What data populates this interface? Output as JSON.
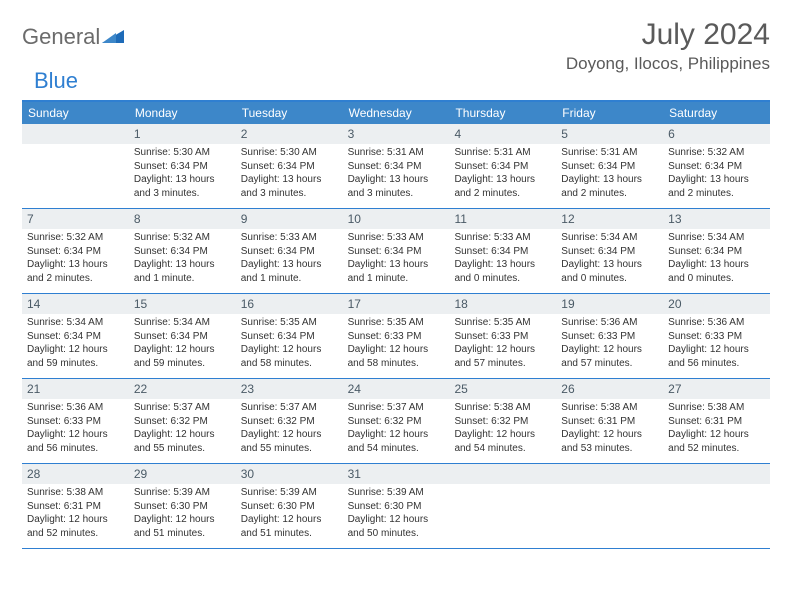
{
  "brand": {
    "name1": "General",
    "name2": "Blue"
  },
  "title": "July 2024",
  "location": "Doyong, Ilocos, Philippines",
  "colors": {
    "header_bg": "#3d87c9",
    "accent": "#2f7fd1",
    "numbar": "#eceff1"
  },
  "dayNames": [
    "Sunday",
    "Monday",
    "Tuesday",
    "Wednesday",
    "Thursday",
    "Friday",
    "Saturday"
  ],
  "weeks": [
    [
      {
        "n": "",
        "lines": []
      },
      {
        "n": "1",
        "lines": [
          "Sunrise: 5:30 AM",
          "Sunset: 6:34 PM",
          "Daylight: 13 hours",
          "and 3 minutes."
        ]
      },
      {
        "n": "2",
        "lines": [
          "Sunrise: 5:30 AM",
          "Sunset: 6:34 PM",
          "Daylight: 13 hours",
          "and 3 minutes."
        ]
      },
      {
        "n": "3",
        "lines": [
          "Sunrise: 5:31 AM",
          "Sunset: 6:34 PM",
          "Daylight: 13 hours",
          "and 3 minutes."
        ]
      },
      {
        "n": "4",
        "lines": [
          "Sunrise: 5:31 AM",
          "Sunset: 6:34 PM",
          "Daylight: 13 hours",
          "and 2 minutes."
        ]
      },
      {
        "n": "5",
        "lines": [
          "Sunrise: 5:31 AM",
          "Sunset: 6:34 PM",
          "Daylight: 13 hours",
          "and 2 minutes."
        ]
      },
      {
        "n": "6",
        "lines": [
          "Sunrise: 5:32 AM",
          "Sunset: 6:34 PM",
          "Daylight: 13 hours",
          "and 2 minutes."
        ]
      }
    ],
    [
      {
        "n": "7",
        "lines": [
          "Sunrise: 5:32 AM",
          "Sunset: 6:34 PM",
          "Daylight: 13 hours",
          "and 2 minutes."
        ]
      },
      {
        "n": "8",
        "lines": [
          "Sunrise: 5:32 AM",
          "Sunset: 6:34 PM",
          "Daylight: 13 hours",
          "and 1 minute."
        ]
      },
      {
        "n": "9",
        "lines": [
          "Sunrise: 5:33 AM",
          "Sunset: 6:34 PM",
          "Daylight: 13 hours",
          "and 1 minute."
        ]
      },
      {
        "n": "10",
        "lines": [
          "Sunrise: 5:33 AM",
          "Sunset: 6:34 PM",
          "Daylight: 13 hours",
          "and 1 minute."
        ]
      },
      {
        "n": "11",
        "lines": [
          "Sunrise: 5:33 AM",
          "Sunset: 6:34 PM",
          "Daylight: 13 hours",
          "and 0 minutes."
        ]
      },
      {
        "n": "12",
        "lines": [
          "Sunrise: 5:34 AM",
          "Sunset: 6:34 PM",
          "Daylight: 13 hours",
          "and 0 minutes."
        ]
      },
      {
        "n": "13",
        "lines": [
          "Sunrise: 5:34 AM",
          "Sunset: 6:34 PM",
          "Daylight: 13 hours",
          "and 0 minutes."
        ]
      }
    ],
    [
      {
        "n": "14",
        "lines": [
          "Sunrise: 5:34 AM",
          "Sunset: 6:34 PM",
          "Daylight: 12 hours",
          "and 59 minutes."
        ]
      },
      {
        "n": "15",
        "lines": [
          "Sunrise: 5:34 AM",
          "Sunset: 6:34 PM",
          "Daylight: 12 hours",
          "and 59 minutes."
        ]
      },
      {
        "n": "16",
        "lines": [
          "Sunrise: 5:35 AM",
          "Sunset: 6:34 PM",
          "Daylight: 12 hours",
          "and 58 minutes."
        ]
      },
      {
        "n": "17",
        "lines": [
          "Sunrise: 5:35 AM",
          "Sunset: 6:33 PM",
          "Daylight: 12 hours",
          "and 58 minutes."
        ]
      },
      {
        "n": "18",
        "lines": [
          "Sunrise: 5:35 AM",
          "Sunset: 6:33 PM",
          "Daylight: 12 hours",
          "and 57 minutes."
        ]
      },
      {
        "n": "19",
        "lines": [
          "Sunrise: 5:36 AM",
          "Sunset: 6:33 PM",
          "Daylight: 12 hours",
          "and 57 minutes."
        ]
      },
      {
        "n": "20",
        "lines": [
          "Sunrise: 5:36 AM",
          "Sunset: 6:33 PM",
          "Daylight: 12 hours",
          "and 56 minutes."
        ]
      }
    ],
    [
      {
        "n": "21",
        "lines": [
          "Sunrise: 5:36 AM",
          "Sunset: 6:33 PM",
          "Daylight: 12 hours",
          "and 56 minutes."
        ]
      },
      {
        "n": "22",
        "lines": [
          "Sunrise: 5:37 AM",
          "Sunset: 6:32 PM",
          "Daylight: 12 hours",
          "and 55 minutes."
        ]
      },
      {
        "n": "23",
        "lines": [
          "Sunrise: 5:37 AM",
          "Sunset: 6:32 PM",
          "Daylight: 12 hours",
          "and 55 minutes."
        ]
      },
      {
        "n": "24",
        "lines": [
          "Sunrise: 5:37 AM",
          "Sunset: 6:32 PM",
          "Daylight: 12 hours",
          "and 54 minutes."
        ]
      },
      {
        "n": "25",
        "lines": [
          "Sunrise: 5:38 AM",
          "Sunset: 6:32 PM",
          "Daylight: 12 hours",
          "and 54 minutes."
        ]
      },
      {
        "n": "26",
        "lines": [
          "Sunrise: 5:38 AM",
          "Sunset: 6:31 PM",
          "Daylight: 12 hours",
          "and 53 minutes."
        ]
      },
      {
        "n": "27",
        "lines": [
          "Sunrise: 5:38 AM",
          "Sunset: 6:31 PM",
          "Daylight: 12 hours",
          "and 52 minutes."
        ]
      }
    ],
    [
      {
        "n": "28",
        "lines": [
          "Sunrise: 5:38 AM",
          "Sunset: 6:31 PM",
          "Daylight: 12 hours",
          "and 52 minutes."
        ]
      },
      {
        "n": "29",
        "lines": [
          "Sunrise: 5:39 AM",
          "Sunset: 6:30 PM",
          "Daylight: 12 hours",
          "and 51 minutes."
        ]
      },
      {
        "n": "30",
        "lines": [
          "Sunrise: 5:39 AM",
          "Sunset: 6:30 PM",
          "Daylight: 12 hours",
          "and 51 minutes."
        ]
      },
      {
        "n": "31",
        "lines": [
          "Sunrise: 5:39 AM",
          "Sunset: 6:30 PM",
          "Daylight: 12 hours",
          "and 50 minutes."
        ]
      },
      {
        "n": "",
        "lines": []
      },
      {
        "n": "",
        "lines": []
      },
      {
        "n": "",
        "lines": []
      }
    ]
  ]
}
